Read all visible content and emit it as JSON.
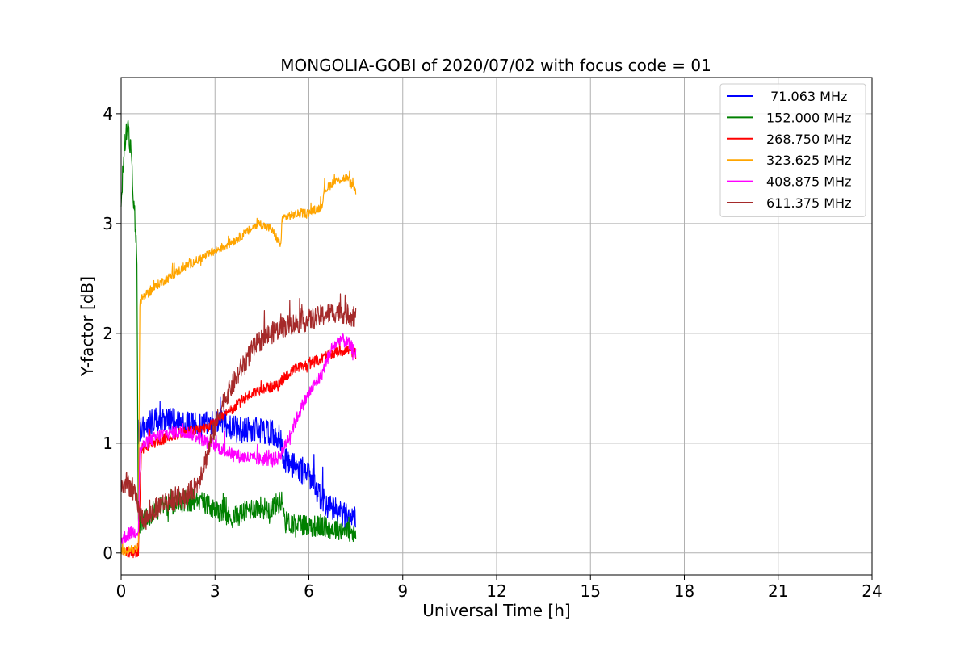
{
  "chart_data": {
    "type": "line",
    "title": "MONGOLIA-GOBI of 2020/07/02 with focus code = 01",
    "xlabel": "Universal Time [h]",
    "ylabel": "Y-factor [dB]",
    "xlim": [
      0,
      24
    ],
    "ylim": [
      -0.2,
      4.33
    ],
    "xticks": [
      0,
      3,
      6,
      9,
      12,
      15,
      18,
      21,
      24
    ],
    "yticks": [
      0,
      1,
      2,
      3,
      4
    ],
    "xtick_labels": [
      "0",
      "3",
      "6",
      "9",
      "12",
      "15",
      "18",
      "21",
      "24"
    ],
    "ytick_labels": [
      "0",
      "1",
      "2",
      "3",
      "4"
    ],
    "grid": true,
    "legend_position": "top-right",
    "series": [
      {
        "name": " 71.063 MHz",
        "color": "#0000ff",
        "x": [
          0.55,
          0.9,
          1.3,
          1.7,
          2.1,
          2.5,
          2.9,
          3.3,
          3.7,
          4.1,
          4.5,
          4.9,
          5.1,
          5.2,
          5.6,
          6.0,
          6.3,
          6.6,
          7.0,
          7.4,
          7.5
        ],
        "y": [
          1.1,
          1.18,
          1.22,
          1.2,
          1.18,
          1.15,
          1.2,
          1.18,
          1.12,
          1.12,
          1.12,
          1.08,
          1.05,
          0.85,
          0.78,
          0.7,
          0.55,
          0.42,
          0.36,
          0.32,
          0.3
        ],
        "noise": 0.12
      },
      {
        "name": "152.000 MHz",
        "color": "#008000",
        "x": [
          0,
          0.1,
          0.2,
          0.3,
          0.4,
          0.5,
          0.55,
          0.8,
          1.1,
          1.4,
          1.7,
          2.0,
          2.3,
          2.6,
          2.9,
          3.2,
          3.5,
          3.8,
          4.1,
          4.4,
          4.7,
          5.0,
          5.15,
          5.25,
          5.6,
          6.0,
          6.4,
          6.8,
          7.2,
          7.5
        ],
        "y": [
          3.2,
          3.7,
          3.9,
          3.7,
          3.2,
          2.8,
          0.25,
          0.32,
          0.4,
          0.42,
          0.45,
          0.47,
          0.48,
          0.46,
          0.42,
          0.36,
          0.32,
          0.35,
          0.4,
          0.42,
          0.4,
          0.45,
          0.48,
          0.28,
          0.27,
          0.25,
          0.24,
          0.22,
          0.22,
          0.15
        ],
        "noise": 0.1
      },
      {
        "name": "268.750 MHz",
        "color": "#ff0000",
        "x": [
          0.0,
          0.55,
          0.65,
          1.0,
          1.5,
          2.0,
          2.5,
          3.0,
          3.5,
          4.0,
          4.5,
          5.0,
          5.2,
          5.6,
          6.0,
          6.4,
          6.8,
          7.2,
          7.5
        ],
        "y": [
          0.02,
          0.0,
          0.95,
          1.0,
          1.05,
          1.1,
          1.12,
          1.18,
          1.3,
          1.42,
          1.5,
          1.52,
          1.6,
          1.68,
          1.72,
          1.77,
          1.82,
          1.85,
          1.82
        ],
        "noise": 0.05
      },
      {
        "name": "323.625 MHz",
        "color": "#ffa500",
        "x": [
          0.0,
          0.55,
          0.6,
          0.8,
          1.2,
          1.6,
          2.0,
          2.4,
          2.8,
          3.2,
          3.6,
          4.0,
          4.4,
          4.8,
          5.0,
          5.1,
          5.15,
          5.5,
          6.0,
          6.4,
          6.5,
          6.8,
          7.2,
          7.5
        ],
        "y": [
          0.0,
          0.05,
          2.3,
          2.35,
          2.45,
          2.52,
          2.6,
          2.66,
          2.72,
          2.78,
          2.84,
          2.92,
          3.0,
          2.95,
          2.85,
          2.8,
          3.05,
          3.08,
          3.1,
          3.15,
          3.3,
          3.38,
          3.42,
          3.3
        ],
        "noise": 0.04
      },
      {
        "name": "408.875 MHz",
        "color": "#ff00ff",
        "x": [
          0.0,
          0.3,
          0.55,
          0.6,
          0.9,
          1.3,
          1.7,
          2.1,
          2.5,
          2.8,
          3.0,
          3.4,
          3.8,
          4.2,
          4.6,
          5.0,
          5.2,
          5.5,
          5.8,
          6.1,
          6.4,
          6.7,
          7.0,
          7.3,
          7.5
        ],
        "y": [
          0.12,
          0.18,
          0.2,
          0.95,
          1.02,
          1.08,
          1.1,
          1.1,
          1.05,
          1.0,
          0.98,
          0.92,
          0.88,
          0.86,
          0.85,
          0.86,
          0.95,
          1.15,
          1.35,
          1.5,
          1.62,
          1.85,
          1.95,
          1.9,
          1.82
        ],
        "noise": 0.06
      },
      {
        "name": "611.375 MHz",
        "color": "#a52a2a",
        "x": [
          0.0,
          0.2,
          0.4,
          0.6,
          0.8,
          1.0,
          1.3,
          1.6,
          2.0,
          2.4,
          2.7,
          3.0,
          3.3,
          3.6,
          3.9,
          4.2,
          4.5,
          4.8,
          5.1,
          5.4,
          5.7,
          6.0,
          6.3,
          6.6,
          6.9,
          7.2,
          7.5
        ],
        "y": [
          0.6,
          0.65,
          0.55,
          0.35,
          0.3,
          0.38,
          0.45,
          0.48,
          0.5,
          0.6,
          0.85,
          1.15,
          1.4,
          1.55,
          1.72,
          1.85,
          1.95,
          2.0,
          2.05,
          2.08,
          2.1,
          2.12,
          2.15,
          2.18,
          2.2,
          2.18,
          2.15
        ],
        "noise": 0.1
      }
    ]
  }
}
